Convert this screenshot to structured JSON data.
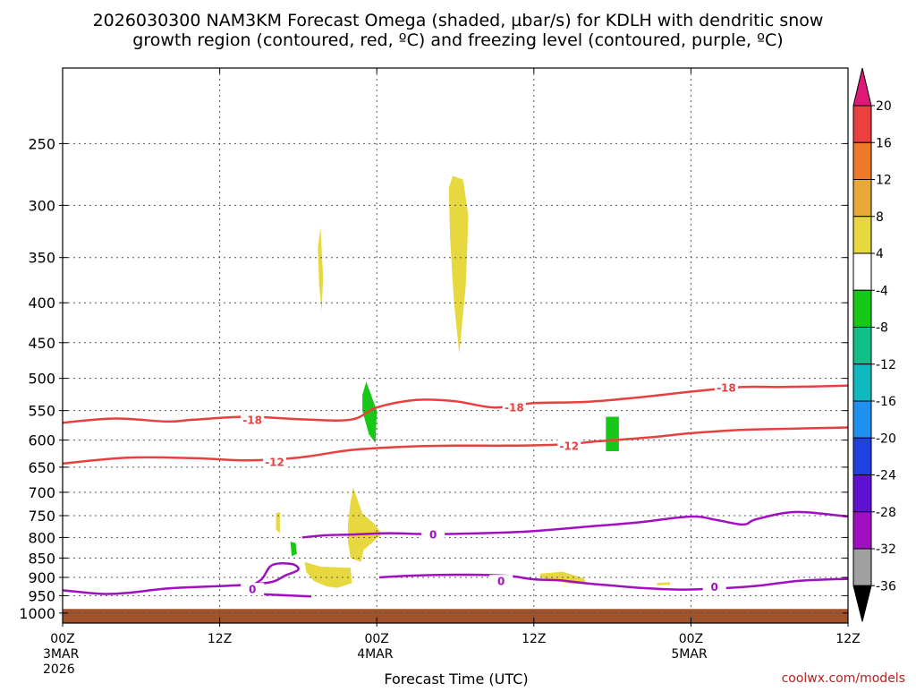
{
  "chart_data": {
    "type": "heatmap",
    "title_line1": "2026030300 NAM3KM Forecast Omega (shaded, µbar/s) for KDLH with dendritic snow",
    "title_line2": "growth region (contoured, red, ºC) and freezing level (contoured, purple, ºC)",
    "xlabel": "Forecast Time (UTC)",
    "credit": "coolwx.com/models",
    "x_range_hours": [
      0,
      60
    ],
    "y_range_hPa": [
      1030,
      200
    ],
    "y_ticks": [
      {
        "value": 250,
        "label": "250"
      },
      {
        "value": 300,
        "label": "300"
      },
      {
        "value": 350,
        "label": "350"
      },
      {
        "value": 400,
        "label": "400"
      },
      {
        "value": 450,
        "label": "450"
      },
      {
        "value": 500,
        "label": "500"
      },
      {
        "value": 550,
        "label": "550"
      },
      {
        "value": 600,
        "label": "600"
      },
      {
        "value": 650,
        "label": "650"
      },
      {
        "value": 700,
        "label": "700"
      },
      {
        "value": 750,
        "label": "750"
      },
      {
        "value": 800,
        "label": "800"
      },
      {
        "value": 850,
        "label": "850"
      },
      {
        "value": 900,
        "label": "900"
      },
      {
        "value": 950,
        "label": "950"
      },
      {
        "value": 1000,
        "label": "1000"
      }
    ],
    "x_ticks": [
      {
        "hour": 0,
        "label": "00Z",
        "date": "3MAR",
        "year": "2026"
      },
      {
        "hour": 12,
        "label": "12Z",
        "date": "",
        "year": ""
      },
      {
        "hour": 24,
        "label": "00Z",
        "date": "4MAR",
        "year": ""
      },
      {
        "hour": 36,
        "label": "12Z",
        "date": "",
        "year": ""
      },
      {
        "hour": 48,
        "label": "00Z",
        "date": "5MAR",
        "year": ""
      },
      {
        "hour": 60,
        "label": "12Z",
        "date": "",
        "year": ""
      }
    ],
    "ground_top_hPa": 988,
    "colorbar": {
      "labels": [
        "20",
        "16",
        "12",
        "8",
        "4",
        "-4",
        "-8",
        "-12",
        "-16",
        "-20",
        "-24",
        "-28",
        "-32",
        "-36"
      ],
      "colors": [
        "#ec4040",
        "#ec7a2a",
        "#e8a93a",
        "#e8d840",
        "#ffffff",
        "#18c818",
        "#10c088",
        "#10b8c0",
        "#2090f0",
        "#2040e0",
        "#6010d0",
        "#a010c0",
        "#a0a0a0"
      ],
      "top_color": "#e01878",
      "bottom_color": "#000000"
    },
    "omega_regions": [
      {
        "value": 5,
        "color": "#e8d840",
        "points": [
          [
            19.7,
            320
          ],
          [
            19.9,
            370
          ],
          [
            19.8,
            410
          ],
          [
            19.6,
            380
          ],
          [
            19.5,
            340
          ]
        ]
      },
      {
        "value": 5,
        "color": "#e8d840",
        "points": [
          [
            29.8,
            275
          ],
          [
            30.6,
            278
          ],
          [
            31.0,
            310
          ],
          [
            30.8,
            380
          ],
          [
            30.3,
            465
          ],
          [
            29.9,
            400
          ],
          [
            29.6,
            330
          ],
          [
            29.5,
            285
          ]
        ]
      },
      {
        "value": 5,
        "color": "#e8d840",
        "points": [
          [
            22.2,
            690
          ],
          [
            22.9,
            745
          ],
          [
            23.8,
            768
          ],
          [
            24.4,
            792
          ],
          [
            24.1,
            800
          ],
          [
            23.0,
            830
          ],
          [
            22.8,
            860
          ],
          [
            22.0,
            850
          ],
          [
            21.8,
            810
          ],
          [
            21.8,
            770
          ],
          [
            22.0,
            720
          ]
        ]
      },
      {
        "value": 5,
        "color": "#e8d840",
        "points": [
          [
            18.5,
            860
          ],
          [
            19.7,
            872
          ],
          [
            22.0,
            875
          ],
          [
            22.1,
            915
          ],
          [
            21.0,
            928
          ],
          [
            20.2,
            925
          ],
          [
            19.2,
            910
          ],
          [
            18.6,
            885
          ]
        ]
      },
      {
        "value": 5,
        "color": "#e8d840",
        "points": [
          [
            16.3,
            745
          ],
          [
            16.6,
            742
          ],
          [
            16.6,
            790
          ],
          [
            16.3,
            782
          ]
        ]
      },
      {
        "value": 5,
        "color": "#e8d840",
        "points": [
          [
            36.5,
            890
          ],
          [
            38.2,
            885
          ],
          [
            39.8,
            902
          ],
          [
            40.0,
            915
          ],
          [
            39.0,
            918
          ],
          [
            37.8,
            910
          ],
          [
            36.5,
            900
          ]
        ]
      },
      {
        "value": 5,
        "color": "#e8d840",
        "points": [
          [
            45.4,
            915
          ],
          [
            46.4,
            913
          ],
          [
            46.4,
            920
          ],
          [
            45.4,
            921
          ]
        ]
      },
      {
        "value": -6,
        "color": "#18c818",
        "points": [
          [
            23.2,
            505
          ],
          [
            24.0,
            550
          ],
          [
            23.9,
            605
          ],
          [
            23.4,
            590
          ],
          [
            22.9,
            550
          ],
          [
            22.9,
            525
          ]
        ]
      },
      {
        "value": -6,
        "color": "#18c818",
        "points": [
          [
            41.5,
            560
          ],
          [
            42.5,
            560
          ],
          [
            42.5,
            620
          ],
          [
            41.5,
            620
          ]
        ]
      },
      {
        "value": -6,
        "color": "#18c818",
        "points": [
          [
            17.4,
            810
          ],
          [
            17.8,
            813
          ],
          [
            17.9,
            840
          ],
          [
            17.5,
            845
          ]
        ]
      }
    ],
    "contours_dgz": [
      {
        "value": -18,
        "label": "-18",
        "color": "#e84040",
        "points": [
          [
            0,
            570
          ],
          [
            4,
            563
          ],
          [
            8,
            568
          ],
          [
            10,
            565
          ],
          [
            14,
            560
          ],
          [
            18,
            564
          ],
          [
            22,
            565
          ],
          [
            24,
            545
          ],
          [
            27,
            533
          ],
          [
            30,
            535
          ],
          [
            33,
            545
          ],
          [
            36,
            538
          ],
          [
            40,
            536
          ],
          [
            44,
            529
          ],
          [
            48,
            520
          ],
          [
            52,
            513
          ],
          [
            55,
            513
          ],
          [
            60,
            511
          ]
        ],
        "labels_at": [
          [
            14.5,
            565
          ],
          [
            34.5,
            545
          ],
          [
            50.7,
            514
          ]
        ]
      },
      {
        "value": -12,
        "label": "-12",
        "color": "#e84040",
        "points": [
          [
            0,
            643
          ],
          [
            5,
            632
          ],
          [
            10,
            633
          ],
          [
            14,
            637
          ],
          [
            18,
            632
          ],
          [
            22,
            618
          ],
          [
            26,
            612
          ],
          [
            30,
            610
          ],
          [
            34,
            610
          ],
          [
            38,
            608
          ],
          [
            41,
            602
          ],
          [
            45,
            595
          ],
          [
            48,
            588
          ],
          [
            52,
            582
          ],
          [
            56,
            580
          ],
          [
            60,
            578
          ]
        ],
        "labels_at": [
          [
            16.2,
            640
          ],
          [
            38.7,
            610
          ]
        ]
      }
    ],
    "contours_fzl": [
      {
        "value": 0,
        "label": "0",
        "color": "#a010c0",
        "points": [
          [
            18.3,
            800
          ],
          [
            20,
            795
          ],
          [
            22,
            793
          ],
          [
            25,
            790
          ],
          [
            28,
            792
          ],
          [
            32,
            790
          ],
          [
            36,
            785
          ],
          [
            40,
            775
          ],
          [
            44,
            765
          ],
          [
            48,
            752
          ],
          [
            50,
            760
          ],
          [
            52,
            770
          ],
          [
            53,
            758
          ],
          [
            56,
            742
          ],
          [
            60,
            752
          ]
        ],
        "labels_at": [
          [
            28.3,
            793
          ]
        ]
      },
      {
        "value": 0,
        "label": "0",
        "color": "#a010c0",
        "points": [
          [
            24.2,
            900
          ],
          [
            27,
            895
          ],
          [
            31,
            893
          ],
          [
            34,
            896
          ],
          [
            36,
            905
          ],
          [
            38,
            908
          ],
          [
            40,
            916
          ],
          [
            42,
            922
          ],
          [
            44,
            928
          ],
          [
            47,
            933
          ],
          [
            50,
            930
          ],
          [
            53,
            923
          ],
          [
            56,
            910
          ],
          [
            58,
            906
          ],
          [
            60,
            904
          ]
        ],
        "labels_at": [
          [
            33.5,
            910
          ],
          [
            49.8,
            925
          ]
        ]
      },
      {
        "value": 0,
        "label": "0",
        "color": "#a010c0",
        "points": [
          [
            0,
            935
          ],
          [
            3,
            945
          ],
          [
            5,
            942
          ],
          [
            8,
            930
          ],
          [
            11,
            925
          ],
          [
            14,
            920
          ],
          [
            16,
            912
          ],
          [
            17,
            895
          ],
          [
            18,
            880
          ],
          [
            17.5,
            865
          ],
          [
            16,
            868
          ],
          [
            15.2,
            905
          ],
          [
            14,
            935
          ],
          [
            15,
            945
          ],
          [
            19,
            952
          ]
        ],
        "labels_at": [
          [
            14.5,
            932
          ]
        ]
      }
    ]
  }
}
